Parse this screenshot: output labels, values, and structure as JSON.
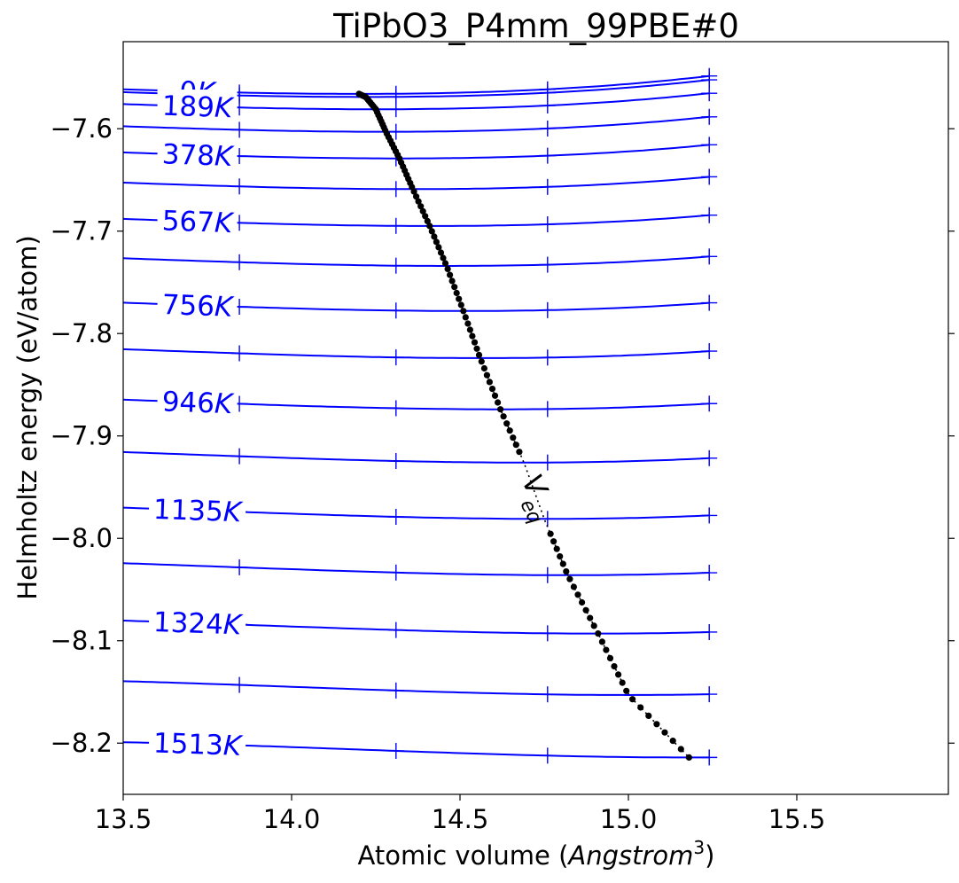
{
  "chart_data": {
    "type": "line",
    "title": "TiPbO3_P4mm_99PBE#0",
    "xlabel_prefix": "Atomic volume (",
    "xlabel_italic": "Angstrom",
    "xlabel_sup": "3",
    "xlabel_suffix": ")",
    "ylabel": "Helmholtz energy (eV/atom)",
    "xlim": [
      13.5,
      15.95
    ],
    "ylim": [
      -8.25,
      -7.515
    ],
    "x_ticks": [
      13.5,
      14.0,
      14.5,
      15.0,
      15.5
    ],
    "x_tick_labels": [
      "13.5",
      "14.0",
      "14.5",
      "15.0",
      "15.5"
    ],
    "y_ticks": [
      -7.6,
      -7.7,
      -7.8,
      -7.9,
      -8.0,
      -8.1,
      -8.2
    ],
    "y_tick_labels": [
      "−7.6",
      "−7.7",
      "−7.8",
      "−7.9",
      "−8.0",
      "−8.1",
      "−8.2"
    ],
    "line_color": "#0000ff",
    "marker_color": "#0000ff",
    "eq_color": "#000000",
    "volumes": [
      13.845,
      14.31,
      14.76,
      15.24
    ],
    "isotherms": [
      {
        "T": 0,
        "label": "0K",
        "f0": -7.566,
        "v0": 14.2,
        "b": 0.012,
        "c": 0.004
      },
      {
        "T": 94.5,
        "label": "",
        "f0": -7.569,
        "v0": 14.22,
        "b": 0.012,
        "c": 0.004
      },
      {
        "T": 189,
        "label": "189K",
        "f0": -7.581,
        "v0": 14.25,
        "b": 0.012,
        "c": 0.004
      },
      {
        "T": 283.5,
        "label": "",
        "f0": -7.603,
        "v0": 14.28,
        "b": 0.012,
        "c": 0.004
      },
      {
        "T": 378,
        "label": "378K",
        "f0": -7.629,
        "v0": 14.32,
        "b": 0.012,
        "c": 0.004
      },
      {
        "T": 472.5,
        "label": "",
        "f0": -7.659,
        "v0": 14.36,
        "b": 0.012,
        "c": 0.004
      },
      {
        "T": 567,
        "label": "567K",
        "f0": -7.695,
        "v0": 14.41,
        "b": 0.012,
        "c": 0.004
      },
      {
        "T": 661.5,
        "label": "",
        "f0": -7.734,
        "v0": 14.46,
        "b": 0.012,
        "c": 0.004
      },
      {
        "T": 756,
        "label": "756K",
        "f0": -7.778,
        "v0": 14.51,
        "b": 0.012,
        "c": 0.004
      },
      {
        "T": 850.5,
        "label": "",
        "f0": -7.824,
        "v0": 14.56,
        "b": 0.012,
        "c": 0.004
      },
      {
        "T": 946,
        "label": "946K",
        "f0": -7.874,
        "v0": 14.62,
        "b": 0.012,
        "c": 0.004
      },
      {
        "T": 1040.5,
        "label": "",
        "f0": -7.926,
        "v0": 14.69,
        "b": 0.012,
        "c": 0.004
      },
      {
        "T": 1135,
        "label": "1135K",
        "f0": -7.981,
        "v0": 14.75,
        "b": 0.012,
        "c": 0.004
      },
      {
        "T": 1229.5,
        "label": "",
        "f0": -8.036,
        "v0": 14.82,
        "b": 0.012,
        "c": 0.004
      },
      {
        "T": 1324,
        "label": "1324K",
        "f0": -8.093,
        "v0": 14.91,
        "b": 0.012,
        "c": 0.004
      },
      {
        "T": 1418.5,
        "label": "",
        "f0": -8.153,
        "v0": 15.0,
        "b": 0.012,
        "c": 0.004
      },
      {
        "T": 1513,
        "label": "1513K",
        "f0": -8.214,
        "v0": 15.18,
        "b": 0.012,
        "c": 0.004
      }
    ],
    "veq_label_main": "V",
    "veq_label_sub": "eq",
    "veq_points": 120
  }
}
